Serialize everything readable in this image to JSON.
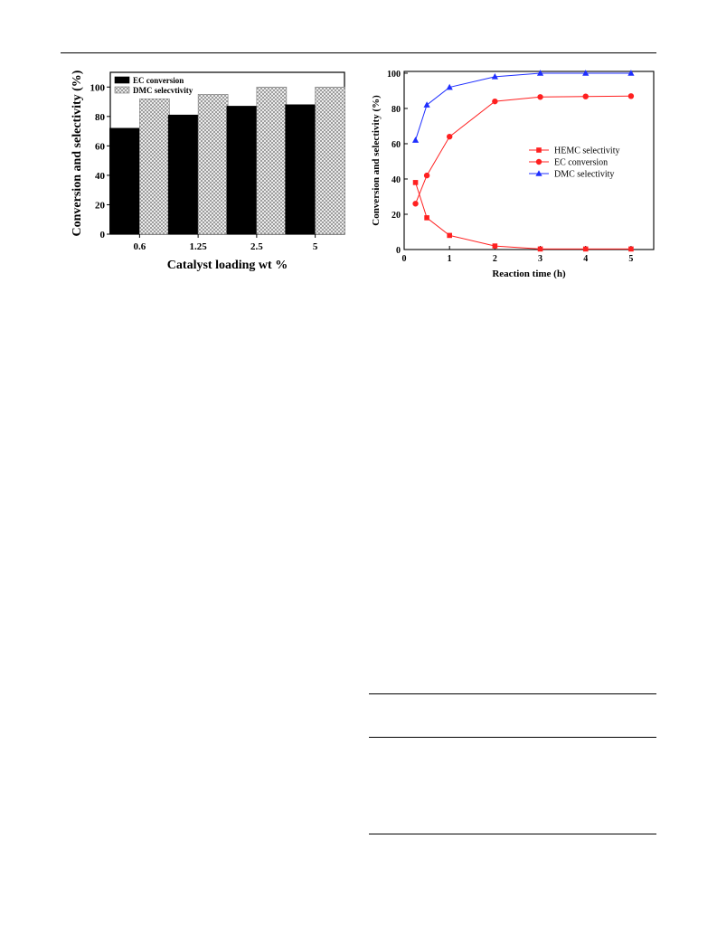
{
  "chart_data": [
    {
      "type": "bar",
      "categories": [
        "0.6",
        "1.25",
        "2.5",
        "5"
      ],
      "series": [
        {
          "name": "EC conversion",
          "values": [
            72,
            81,
            87,
            88
          ],
          "color": "#000000",
          "pattern": "solid"
        },
        {
          "name": "DMC selecvtivity",
          "values": [
            92,
            95,
            100,
            100
          ],
          "color": "#cfcfcf",
          "pattern": "crosshatch"
        }
      ],
      "xlabel": "Catalyst loading wt %",
      "ylabel": "Conversion and selectivity (%)",
      "ylim": [
        0,
        110
      ],
      "yticks": [
        "0",
        "20",
        "40",
        "60",
        "80",
        "100"
      ],
      "grid": false,
      "legend": "top-left"
    },
    {
      "type": "line",
      "x": [
        0.25,
        0.5,
        1,
        2,
        3,
        4,
        5
      ],
      "series": [
        {
          "name": "HEMC selectivity",
          "values": [
            38,
            18,
            8,
            2,
            0.3,
            0.3,
            0.3
          ],
          "color": "#ff2020",
          "marker": "square"
        },
        {
          "name": "EC conversion",
          "values": [
            26,
            42,
            64,
            84,
            86.5,
            86.8,
            87
          ],
          "color": "#ff2020",
          "marker": "circle"
        },
        {
          "name": "DMC selectivity",
          "values": [
            62,
            82,
            92,
            98,
            100,
            100,
            100
          ],
          "color": "#1f2fff",
          "marker": "triangle"
        }
      ],
      "xlabel": "Reaction time (h)",
      "ylabel": "Conversion and selectivity (%)",
      "xlim": [
        0,
        5.5
      ],
      "ylim": [
        0,
        101
      ],
      "xticks": [
        "0",
        "1",
        "2",
        "3",
        "4",
        "5"
      ],
      "yticks": [
        "0",
        "20",
        "40",
        "60",
        "80",
        "100"
      ],
      "grid": false,
      "legend": "center-right"
    }
  ]
}
